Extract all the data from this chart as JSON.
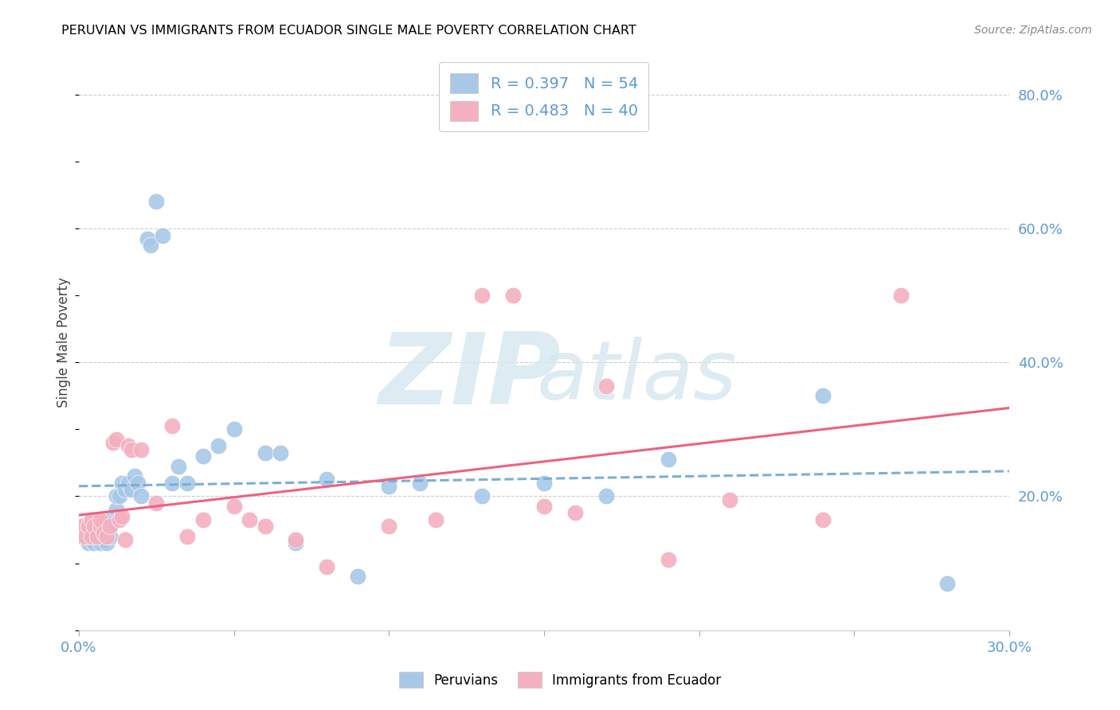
{
  "title": "PERUVIAN VS IMMIGRANTS FROM ECUADOR SINGLE MALE POVERTY CORRELATION CHART",
  "source": "Source: ZipAtlas.com",
  "ylabel": "Single Male Poverty",
  "xlim": [
    0.0,
    0.3
  ],
  "ylim": [
    0.0,
    0.86
  ],
  "peruvians_color": "#a8c8e8",
  "ecuador_color": "#f4b0c0",
  "trend_peruvians_color": "#7bafd4",
  "trend_ecuador_color": "#f06080",
  "R_peruvians": 0.397,
  "N_peruvians": 54,
  "R_ecuador": 0.483,
  "N_ecuador": 40,
  "legend_label_1": "Peruvians",
  "legend_label_2": "Immigrants from Ecuador",
  "peru_x": [
    0.001,
    0.002,
    0.003,
    0.003,
    0.004,
    0.004,
    0.005,
    0.005,
    0.005,
    0.006,
    0.006,
    0.007,
    0.007,
    0.007,
    0.008,
    0.008,
    0.009,
    0.009,
    0.01,
    0.01,
    0.011,
    0.012,
    0.012,
    0.013,
    0.014,
    0.015,
    0.016,
    0.017,
    0.018,
    0.019,
    0.02,
    0.022,
    0.023,
    0.025,
    0.027,
    0.03,
    0.032,
    0.035,
    0.04,
    0.045,
    0.05,
    0.06,
    0.065,
    0.07,
    0.08,
    0.09,
    0.1,
    0.11,
    0.13,
    0.15,
    0.17,
    0.19,
    0.24,
    0.28
  ],
  "peru_y": [
    0.14,
    0.15,
    0.13,
    0.155,
    0.14,
    0.16,
    0.13,
    0.155,
    0.16,
    0.14,
    0.16,
    0.13,
    0.14,
    0.155,
    0.14,
    0.16,
    0.13,
    0.155,
    0.14,
    0.155,
    0.17,
    0.18,
    0.2,
    0.2,
    0.22,
    0.21,
    0.22,
    0.21,
    0.23,
    0.22,
    0.2,
    0.585,
    0.575,
    0.64,
    0.59,
    0.22,
    0.245,
    0.22,
    0.26,
    0.275,
    0.3,
    0.265,
    0.265,
    0.13,
    0.225,
    0.08,
    0.215,
    0.22,
    0.2,
    0.22,
    0.2,
    0.255,
    0.35,
    0.07
  ],
  "ecua_x": [
    0.001,
    0.002,
    0.003,
    0.004,
    0.004,
    0.005,
    0.006,
    0.007,
    0.007,
    0.008,
    0.009,
    0.01,
    0.011,
    0.012,
    0.013,
    0.014,
    0.015,
    0.016,
    0.017,
    0.02,
    0.025,
    0.03,
    0.035,
    0.04,
    0.05,
    0.055,
    0.06,
    0.07,
    0.08,
    0.1,
    0.115,
    0.13,
    0.14,
    0.15,
    0.16,
    0.17,
    0.19,
    0.21,
    0.24,
    0.265
  ],
  "ecua_y": [
    0.155,
    0.14,
    0.155,
    0.14,
    0.165,
    0.155,
    0.14,
    0.155,
    0.165,
    0.145,
    0.14,
    0.155,
    0.28,
    0.285,
    0.165,
    0.17,
    0.135,
    0.275,
    0.27,
    0.27,
    0.19,
    0.305,
    0.14,
    0.165,
    0.185,
    0.165,
    0.155,
    0.135,
    0.095,
    0.155,
    0.165,
    0.5,
    0.5,
    0.185,
    0.175,
    0.365,
    0.105,
    0.195,
    0.165,
    0.5
  ]
}
